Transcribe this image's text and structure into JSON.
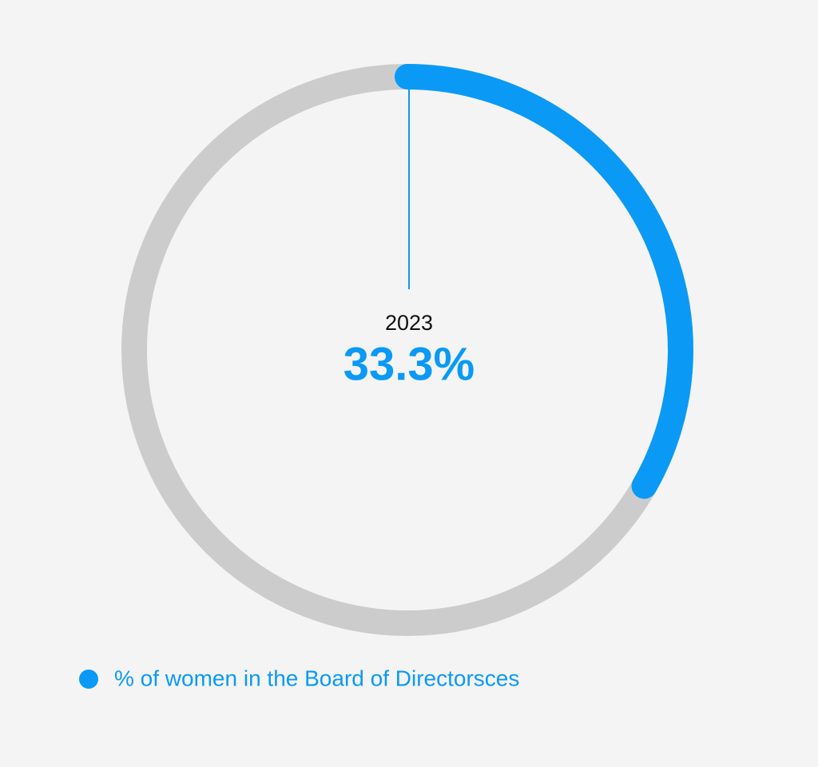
{
  "chart_data": {
    "type": "gauge",
    "ylim": [
      0,
      100
    ],
    "categories": [
      "2023"
    ],
    "series": [
      {
        "name": "% of women in the Board of Directorsces",
        "color": "#0a9af5",
        "values": [
          33.3
        ],
        "value_labels": [
          "33.3%"
        ]
      }
    ],
    "track_color": "#cccccc",
    "legend": "bottom-left"
  }
}
